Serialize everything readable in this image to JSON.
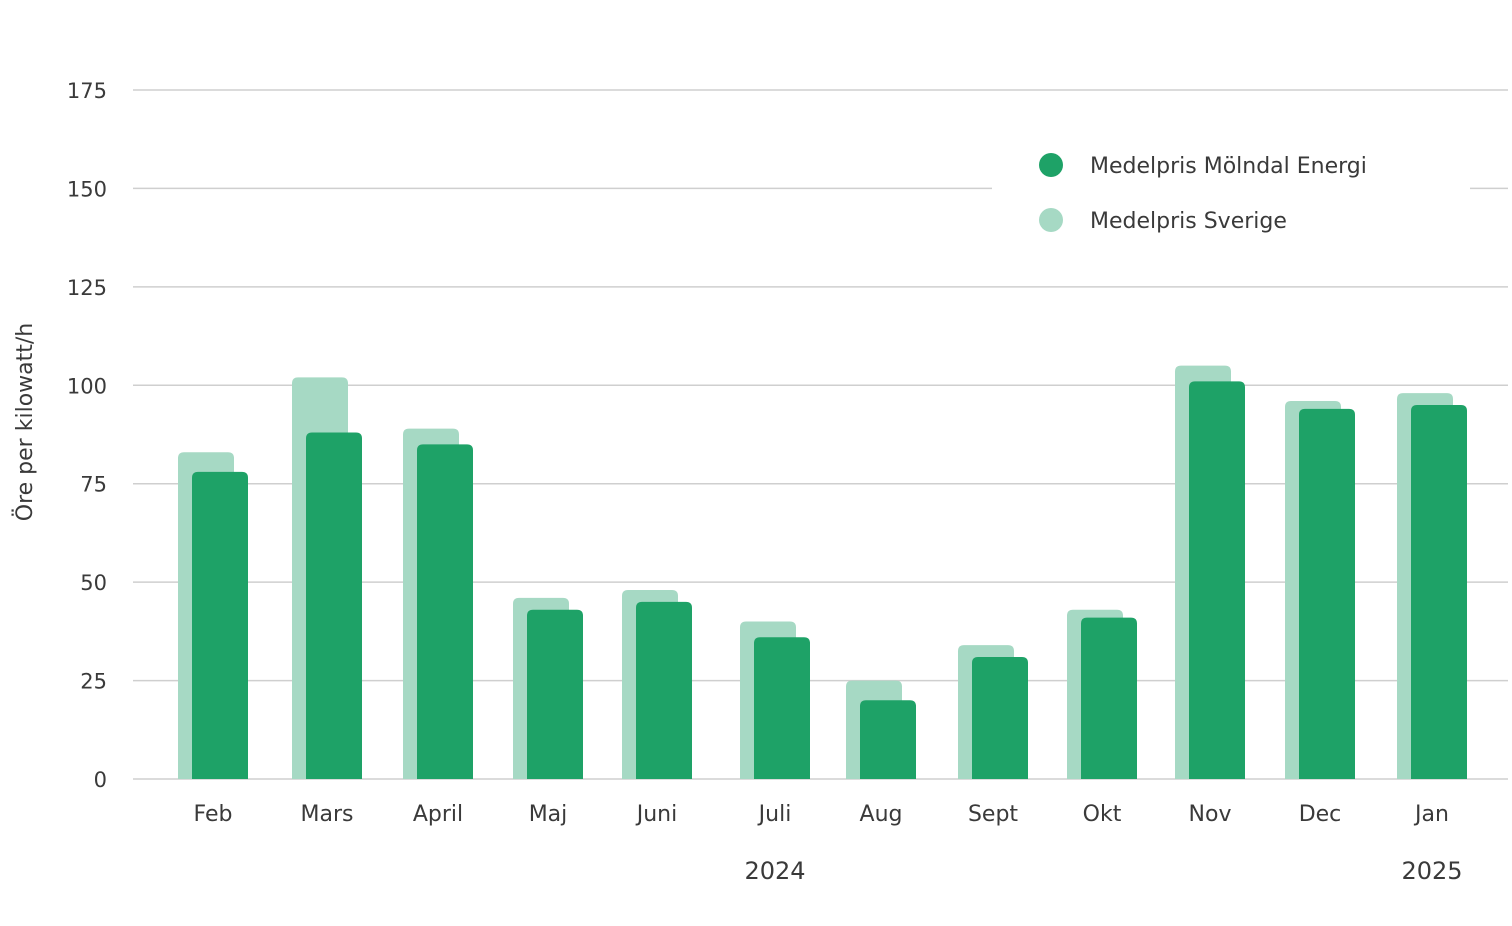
{
  "chart_data": {
    "type": "bar",
    "ylabel": "Öre per kilowatt/h",
    "ylim": [
      0,
      175
    ],
    "yticks": [
      0,
      25,
      50,
      75,
      100,
      125,
      150,
      175
    ],
    "grid": true,
    "legend_position": "top-right",
    "categories": [
      "Feb",
      "Mars",
      "April",
      "Maj",
      "Juni",
      "Juli",
      "Aug",
      "Sept",
      "Okt",
      "Nov",
      "Dec",
      "Jan"
    ],
    "year_labels": [
      {
        "label": "2024",
        "under_category": "Juli"
      },
      {
        "label": "2025",
        "under_category": "Jan"
      }
    ],
    "series": [
      {
        "name": "Medelpris Sverige",
        "color": "#a6d9c4",
        "values": [
          83,
          102,
          89,
          46,
          48,
          40,
          25,
          34,
          43,
          105,
          96,
          98
        ]
      },
      {
        "name": "Medelpris Mölndal Energi",
        "color": "#1ea267",
        "values": [
          78,
          88,
          85,
          43,
          45,
          36,
          20,
          31,
          41,
          101,
          94,
          95
        ]
      }
    ],
    "legend": [
      {
        "name": "Medelpris Mölndal Energi",
        "color": "#1ea267"
      },
      {
        "name": "Medelpris Sverige",
        "color": "#a6d9c4"
      }
    ]
  }
}
